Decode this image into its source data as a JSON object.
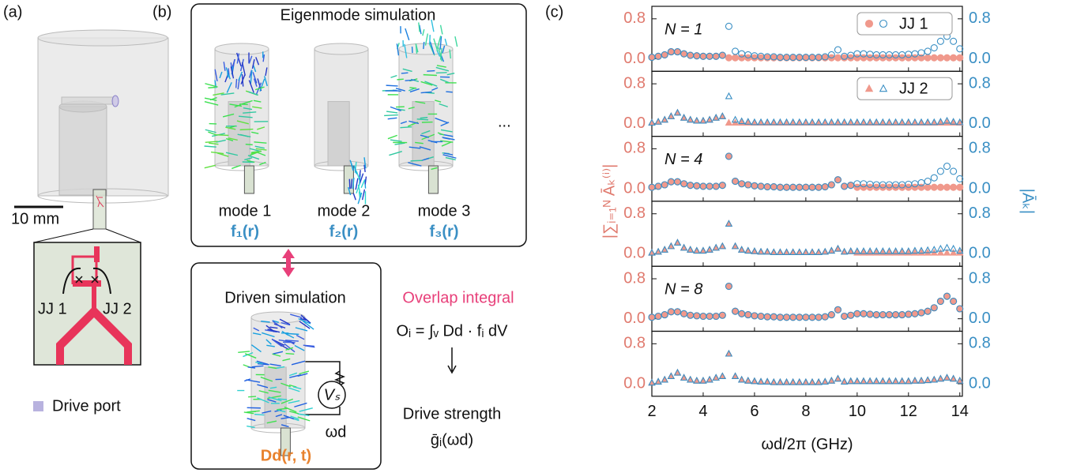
{
  "panel_a": {
    "label": "(a)",
    "scale_bar": "10 mm",
    "jj1": "JJ 1",
    "jj2": "JJ 2",
    "legend": "Drive port"
  },
  "panel_b": {
    "label": "(b)",
    "eigen_title": "Eigenmode simulation",
    "modes": [
      {
        "name": "mode 1",
        "field": "f₁(r)"
      },
      {
        "name": "mode 2",
        "field": "f₂(r)"
      },
      {
        "name": "mode 3",
        "field": "f₃(r)"
      }
    ],
    "ellipsis": "...",
    "driven_title": "Driven simulation",
    "source": "Vₛ",
    "frequency": "ωd",
    "driven_field": "Dd(r, t)",
    "overlap_title": "Overlap integral",
    "overlap_equation": "Oᵢ = ∫ᵥ Dd · fᵢ dV",
    "result_title": "Drive strength",
    "result": "ḡᵢ(ωd)"
  },
  "chart_data": {
    "type": "scatter",
    "label": "(c)",
    "xlabel": "ωd/2π (GHz)",
    "ylabel": "|∑ᵢ₌₁ᴺ Āₖ⁽ⁱ⁾|",
    "y2label": "|Āₖ|",
    "xlim": [
      2,
      14.1
    ],
    "xticks": [
      2,
      4,
      6,
      8,
      10,
      12,
      14
    ],
    "left_color": "#e07a6e",
    "right_color": "#3a8fc4",
    "x": [
      2,
      2.25,
      2.5,
      2.75,
      3,
      3.25,
      3.5,
      3.75,
      4,
      4.25,
      4.5,
      4.75,
      5,
      5.25,
      5.5,
      5.75,
      6,
      6.25,
      6.5,
      6.75,
      7,
      7.25,
      7.5,
      7.75,
      8,
      8.25,
      8.5,
      8.75,
      9,
      9.25,
      9.5,
      9.75,
      10,
      10.25,
      10.5,
      10.75,
      11,
      11.25,
      11.5,
      11.75,
      12,
      12.25,
      12.5,
      12.75,
      13,
      13.25,
      13.5,
      13.75,
      14
    ],
    "subplots": [
      {
        "annotation": "N = 1",
        "legend": "JJ 1",
        "ylim": [
          -0.25,
          1.05
        ],
        "yticks": [
          {
            "value": 0,
            "label": "0.0"
          },
          0.8
        ],
        "y2lim": [
          -0.25,
          1.05
        ],
        "y2ticks": [
          {
            "value": 0,
            "label": "0.0"
          },
          0.8
        ],
        "series": [
          {
            "color": "#f0998c",
            "marker": "circle",
            "filled": true,
            "values": [
              0.03,
              0.05,
              0.08,
              0.14,
              0.14,
              0.1,
              0.07,
              0.06,
              0.05,
              0.05,
              0.05,
              0.07,
              0.02,
              0.02,
              0.02,
              0.02,
              0.02,
              0.02,
              0.02,
              0.02,
              0.02,
              0.02,
              0.02,
              0.02,
              0.02,
              0.02,
              0.02,
              0.02,
              0.02,
              0.02,
              0.02,
              0.02,
              0.02,
              0.02,
              0.02,
              0.02,
              0.02,
              0.02,
              0.02,
              0.02,
              0.02,
              0.02,
              0.02,
              0.02,
              0.02,
              0.02,
              0.02,
              0.02,
              0.02
            ]
          },
          {
            "color": "#3a8fc4",
            "marker": "circle",
            "filled": false,
            "axis": "y2",
            "values": [
              0.03,
              0.05,
              0.08,
              0.14,
              0.14,
              0.1,
              0.07,
              0.06,
              0.05,
              0.05,
              0.05,
              0.07,
              0.65,
              0.15,
              0.1,
              0.08,
              0.06,
              0.05,
              0.04,
              0.04,
              0.03,
              0.03,
              0.03,
              0.03,
              0.03,
              0.03,
              0.03,
              0.04,
              0.08,
              0.18,
              0.05,
              0.07,
              0.1,
              0.1,
              0.09,
              0.08,
              0.08,
              0.08,
              0.08,
              0.08,
              0.09,
              0.1,
              0.12,
              0.15,
              0.22,
              0.35,
              0.45,
              0.35,
              0.2
            ]
          }
        ]
      },
      {
        "legend": "JJ 2",
        "ylim": [
          -0.25,
          1.05
        ],
        "yticks": [
          {
            "value": 0,
            "label": "0.0"
          },
          0.8
        ],
        "y2lim": [
          -0.25,
          1.05
        ],
        "y2ticks": [
          {
            "value": 0,
            "label": "0.0"
          },
          0.8
        ],
        "series": [
          {
            "color": "#f0998c",
            "marker": "triangle",
            "filled": true,
            "values": [
              0.02,
              0.04,
              0.08,
              0.15,
              0.22,
              0.12,
              0.08,
              0.06,
              0.06,
              0.08,
              0.12,
              0.15,
              0.02,
              0.02,
              0.02,
              0.02,
              0.02,
              0.02,
              0.02,
              0.02,
              0.02,
              0.02,
              0.02,
              0.02,
              0.02,
              0.02,
              0.02,
              0.02,
              0.02,
              0.02,
              0.02,
              0.02,
              0.02,
              0.02,
              0.02,
              0.02,
              0.02,
              0.02,
              0.02,
              0.02,
              0.02,
              0.02,
              0.02,
              0.02,
              0.02,
              0.02,
              0.02,
              0.02,
              0.02
            ]
          },
          {
            "color": "#3a8fc4",
            "marker": "triangle",
            "filled": false,
            "axis": "y2",
            "values": [
              0.02,
              0.04,
              0.08,
              0.15,
              0.22,
              0.12,
              0.08,
              0.06,
              0.06,
              0.08,
              0.12,
              0.15,
              0.55,
              0.08,
              0.05,
              0.04,
              0.03,
              0.03,
              0.03,
              0.03,
              0.03,
              0.03,
              0.03,
              0.03,
              0.03,
              0.03,
              0.03,
              0.03,
              0.03,
              0.03,
              0.03,
              0.03,
              0.03,
              0.03,
              0.03,
              0.03,
              0.03,
              0.03,
              0.03,
              0.03,
              0.03,
              0.03,
              0.03,
              0.03,
              0.03,
              0.04,
              0.06,
              0.04,
              0.03
            ]
          }
        ]
      },
      {
        "annotation": "N = 4",
        "ylim": [
          -0.25,
          1.05
        ],
        "yticks": [
          {
            "value": 0,
            "label": "0.0"
          },
          0.8
        ],
        "y2lim": [
          -0.25,
          1.05
        ],
        "y2ticks": [
          {
            "value": 0,
            "label": "0.0"
          },
          0.8
        ],
        "series": [
          {
            "color": "#f0998c",
            "marker": "circle",
            "filled": true,
            "values": [
              0.03,
              0.05,
              0.08,
              0.14,
              0.14,
              0.1,
              0.07,
              0.06,
              0.05,
              0.05,
              0.05,
              0.07,
              0.65,
              0.15,
              0.1,
              0.08,
              0.06,
              0.05,
              0.04,
              0.04,
              0.03,
              0.03,
              0.03,
              0.03,
              0.03,
              0.03,
              0.03,
              0.04,
              0.08,
              0.18,
              0.05,
              0.07,
              0.03,
              0.03,
              0.03,
              0.03,
              0.03,
              0.03,
              0.03,
              0.03,
              0.03,
              0.03,
              0.03,
              0.03,
              0.03,
              0.03,
              0.03,
              0.03,
              0.03
            ]
          },
          {
            "color": "#3a8fc4",
            "marker": "circle",
            "filled": false,
            "axis": "y2",
            "values": [
              0.03,
              0.05,
              0.08,
              0.14,
              0.14,
              0.1,
              0.07,
              0.06,
              0.05,
              0.05,
              0.05,
              0.07,
              0.65,
              0.15,
              0.1,
              0.08,
              0.06,
              0.05,
              0.04,
              0.04,
              0.03,
              0.03,
              0.03,
              0.03,
              0.03,
              0.03,
              0.03,
              0.04,
              0.08,
              0.18,
              0.05,
              0.07,
              0.1,
              0.1,
              0.09,
              0.08,
              0.08,
              0.08,
              0.08,
              0.08,
              0.09,
              0.1,
              0.12,
              0.15,
              0.22,
              0.35,
              0.45,
              0.35,
              0.2
            ]
          }
        ]
      },
      {
        "ylim": [
          -0.25,
          1.05
        ],
        "yticks": [
          {
            "value": 0,
            "label": "0.0"
          },
          0.8
        ],
        "y2lim": [
          -0.25,
          1.05
        ],
        "y2ticks": [
          {
            "value": 0,
            "label": "0.0"
          },
          0.8
        ],
        "series": [
          {
            "color": "#f0998c",
            "marker": "triangle",
            "filled": true,
            "values": [
              0.02,
              0.04,
              0.08,
              0.15,
              0.22,
              0.12,
              0.08,
              0.06,
              0.06,
              0.08,
              0.12,
              0.15,
              0.6,
              0.15,
              0.08,
              0.06,
              0.05,
              0.04,
              0.04,
              0.03,
              0.03,
              0.03,
              0.03,
              0.03,
              0.03,
              0.03,
              0.03,
              0.04,
              0.06,
              0.1,
              0.04,
              0.05,
              0.02,
              0.02,
              0.02,
              0.02,
              0.02,
              0.02,
              0.02,
              0.02,
              0.02,
              0.02,
              0.02,
              0.02,
              0.02,
              0.02,
              0.02,
              0.02,
              0.02
            ]
          },
          {
            "color": "#3a8fc4",
            "marker": "triangle",
            "filled": false,
            "axis": "y2",
            "values": [
              0.02,
              0.04,
              0.08,
              0.15,
              0.22,
              0.12,
              0.08,
              0.06,
              0.06,
              0.08,
              0.12,
              0.15,
              0.6,
              0.15,
              0.08,
              0.06,
              0.05,
              0.04,
              0.04,
              0.03,
              0.03,
              0.03,
              0.03,
              0.03,
              0.03,
              0.03,
              0.03,
              0.04,
              0.06,
              0.1,
              0.04,
              0.05,
              0.05,
              0.05,
              0.05,
              0.05,
              0.05,
              0.05,
              0.05,
              0.05,
              0.05,
              0.06,
              0.06,
              0.07,
              0.08,
              0.1,
              0.12,
              0.1,
              0.06
            ]
          }
        ]
      },
      {
        "annotation": "N = 8",
        "ylim": [
          -0.25,
          1.05
        ],
        "yticks": [
          {
            "value": 0,
            "label": "0.0"
          },
          0.8
        ],
        "y2lim": [
          -0.25,
          1.05
        ],
        "y2ticks": [
          {
            "value": 0,
            "label": "0.0"
          },
          0.8
        ],
        "series": [
          {
            "color": "#f0998c",
            "marker": "circle",
            "filled": true,
            "values": [
              0.03,
              0.05,
              0.08,
              0.14,
              0.14,
              0.1,
              0.07,
              0.06,
              0.05,
              0.05,
              0.05,
              0.07,
              0.65,
              0.15,
              0.1,
              0.08,
              0.06,
              0.05,
              0.04,
              0.04,
              0.03,
              0.03,
              0.03,
              0.03,
              0.03,
              0.03,
              0.03,
              0.04,
              0.08,
              0.18,
              0.05,
              0.07,
              0.1,
              0.1,
              0.09,
              0.08,
              0.08,
              0.08,
              0.08,
              0.08,
              0.09,
              0.1,
              0.12,
              0.15,
              0.22,
              0.35,
              0.45,
              0.35,
              0.2
            ]
          },
          {
            "color": "#3a8fc4",
            "marker": "circle",
            "filled": false,
            "axis": "y2",
            "values": [
              0.03,
              0.05,
              0.08,
              0.14,
              0.14,
              0.1,
              0.07,
              0.06,
              0.05,
              0.05,
              0.05,
              0.07,
              0.65,
              0.15,
              0.1,
              0.08,
              0.06,
              0.05,
              0.04,
              0.04,
              0.03,
              0.03,
              0.03,
              0.03,
              0.03,
              0.03,
              0.03,
              0.04,
              0.08,
              0.18,
              0.05,
              0.07,
              0.1,
              0.1,
              0.09,
              0.08,
              0.08,
              0.08,
              0.08,
              0.08,
              0.09,
              0.1,
              0.12,
              0.15,
              0.22,
              0.35,
              0.45,
              0.35,
              0.2
            ]
          }
        ]
      },
      {
        "ylim": [
          -0.25,
          1.05
        ],
        "yticks": [
          {
            "value": 0,
            "label": "0.0"
          },
          0.8
        ],
        "y2lim": [
          -0.25,
          1.05
        ],
        "y2ticks": [
          {
            "value": 0,
            "label": "0.0"
          },
          0.8
        ],
        "series": [
          {
            "color": "#f0998c",
            "marker": "triangle",
            "filled": true,
            "values": [
              0.02,
              0.04,
              0.08,
              0.15,
              0.22,
              0.12,
              0.08,
              0.06,
              0.06,
              0.08,
              0.12,
              0.15,
              0.6,
              0.15,
              0.08,
              0.06,
              0.05,
              0.04,
              0.04,
              0.03,
              0.03,
              0.03,
              0.03,
              0.03,
              0.03,
              0.03,
              0.03,
              0.04,
              0.06,
              0.1,
              0.04,
              0.05,
              0.05,
              0.05,
              0.05,
              0.05,
              0.05,
              0.05,
              0.05,
              0.05,
              0.05,
              0.06,
              0.06,
              0.07,
              0.08,
              0.1,
              0.12,
              0.1,
              0.06
            ]
          },
          {
            "color": "#3a8fc4",
            "marker": "triangle",
            "filled": false,
            "axis": "y2",
            "values": [
              0.02,
              0.04,
              0.08,
              0.15,
              0.22,
              0.12,
              0.08,
              0.06,
              0.06,
              0.08,
              0.12,
              0.15,
              0.6,
              0.15,
              0.08,
              0.06,
              0.05,
              0.04,
              0.04,
              0.03,
              0.03,
              0.03,
              0.03,
              0.03,
              0.03,
              0.03,
              0.03,
              0.04,
              0.06,
              0.1,
              0.04,
              0.05,
              0.05,
              0.05,
              0.05,
              0.05,
              0.05,
              0.05,
              0.05,
              0.05,
              0.05,
              0.06,
              0.06,
              0.07,
              0.08,
              0.1,
              0.12,
              0.1,
              0.06
            ]
          }
        ]
      }
    ]
  }
}
